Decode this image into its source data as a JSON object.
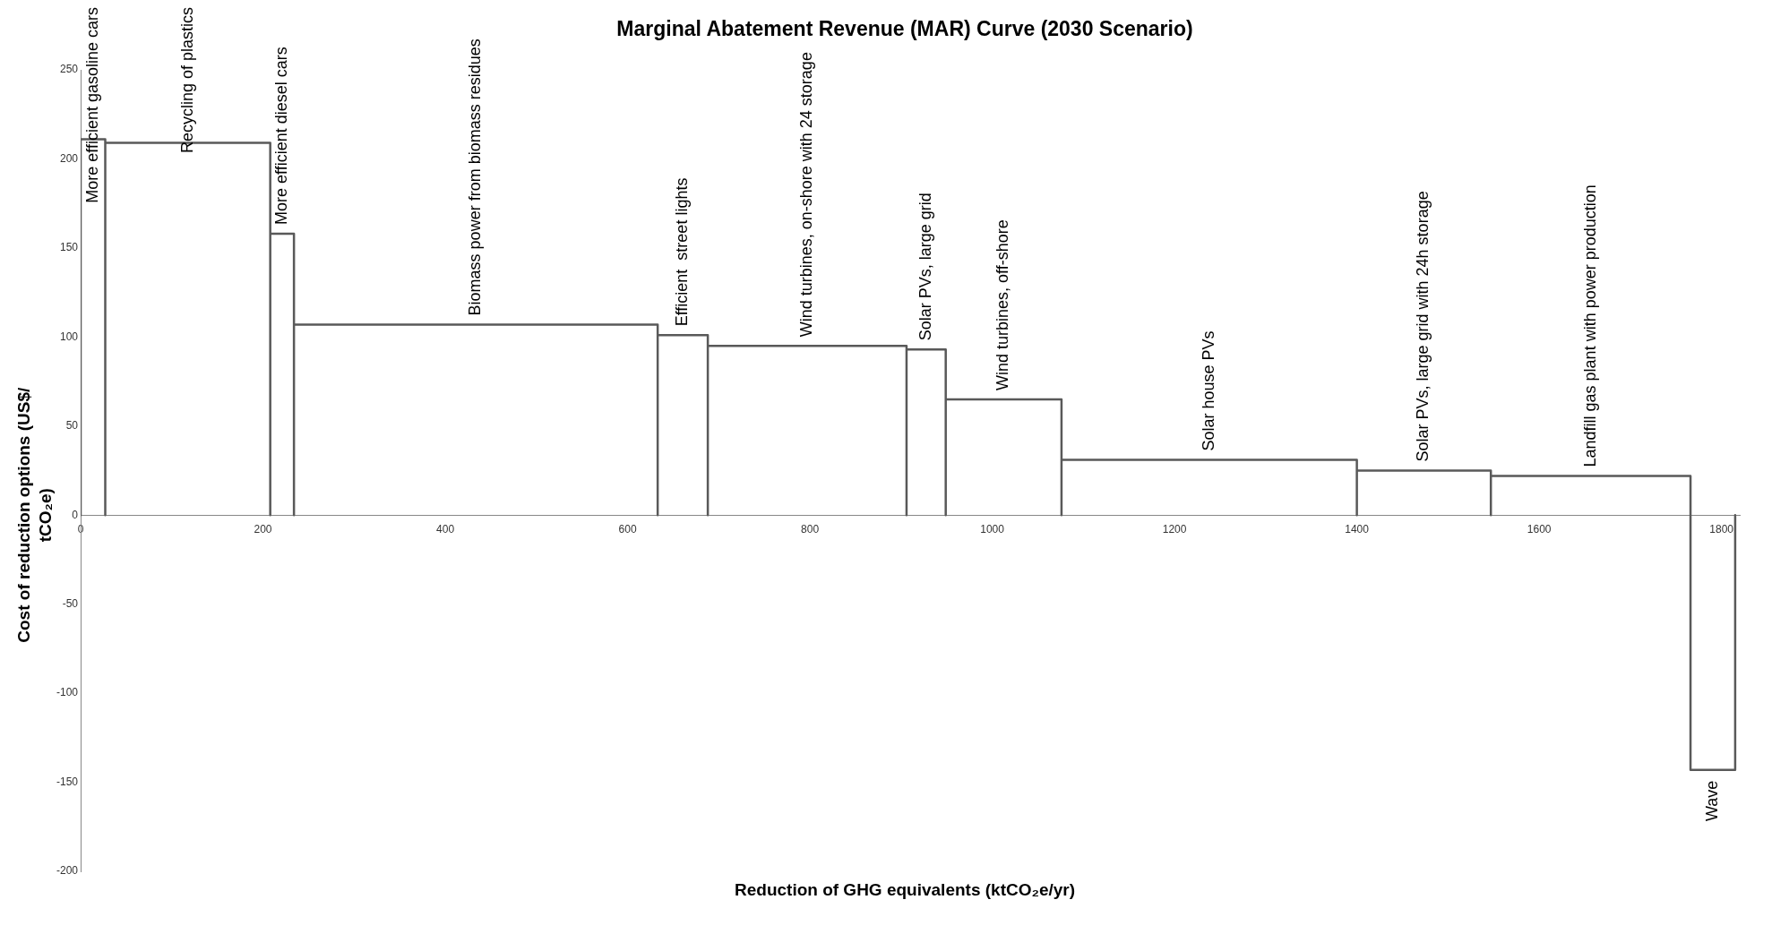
{
  "chart_data": {
    "type": "line",
    "title": "Marginal Abatement Revenue (MAR) Curve (2030 Scenario)",
    "xlabel": "Reduction of GHG equivalents (ktCO₂e/yr)",
    "ylabel": "Cost of reduction options (US$/ tCO₂e)",
    "x": [
      0,
      0,
      27,
      27,
      27,
      208,
      208,
      208,
      234,
      234,
      234,
      633,
      633,
      633,
      688,
      688,
      688,
      906,
      906,
      906,
      949,
      949,
      949,
      1076,
      1076,
      1076,
      1400,
      1400,
      1400,
      1547,
      1547,
      1547,
      1766,
      1766,
      1766,
      1815,
      1815
    ],
    "series": [
      {
        "color": "#595959",
        "values": [
          0,
          211,
          211,
          0,
          209,
          209,
          0,
          158,
          158,
          0,
          107,
          107,
          0,
          101,
          101,
          0,
          95,
          95,
          0,
          93,
          93,
          0,
          65,
          65,
          0,
          31,
          31,
          0,
          25,
          25,
          0,
          22,
          22,
          0,
          -143,
          -143,
          0
        ]
      }
    ],
    "xlim": [
      0,
      1820
    ],
    "xticks": [
      0,
      200,
      400,
      600,
      800,
      1000,
      1200,
      1400,
      1600,
      1800
    ],
    "ylim": [
      -200,
      250
    ],
    "yticks": [
      -200,
      -150,
      -100,
      -50,
      0,
      50,
      100,
      150,
      200,
      250
    ],
    "legend": false,
    "annotations": [
      "More efficient gasoline cars",
      "Recycling of plastics",
      "More efficient diesel cars",
      "Biomass power from biomass residues",
      "Efficient  street lights",
      "Wind turbines, on-shore with 24 storage",
      "Solar PVs, large grid",
      "Wind turbines, off-shore",
      "Solar house PVs",
      "Solar PVs, large grid with 24h storage",
      "Landfill gas plant with power production",
      "Wave"
    ]
  }
}
